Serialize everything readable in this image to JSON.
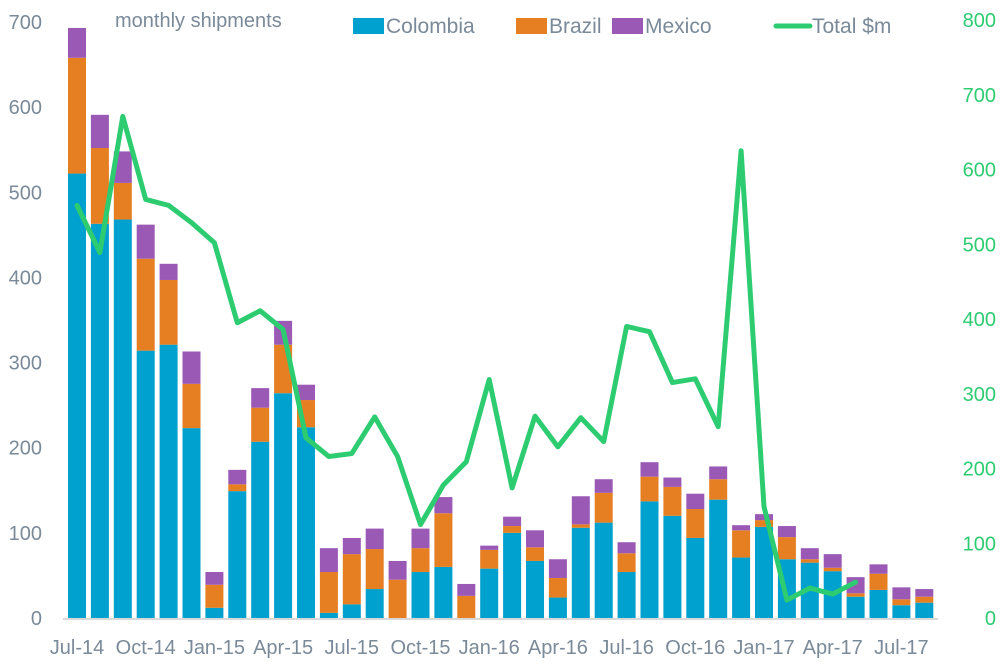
{
  "chart_data": {
    "type": "bar",
    "subtype": "stacked bar with line on secondary axis",
    "title": "monthly shipments",
    "xlabel": "",
    "ylabel": "",
    "y2label": "",
    "ylim": [
      0,
      700
    ],
    "y2lim": [
      0,
      800
    ],
    "yticks": [
      0,
      100,
      200,
      300,
      400,
      500,
      600,
      700
    ],
    "y2ticks": [
      0,
      100,
      200,
      300,
      400,
      500,
      600,
      700,
      800
    ],
    "grid": false,
    "legend_position": "top",
    "categories": [
      "Jul-14",
      "Aug-14",
      "Sep-14",
      "Oct-14",
      "Nov-14",
      "Dec-14",
      "Jan-15",
      "Feb-15",
      "Mar-15",
      "Apr-15",
      "May-15",
      "Jun-15",
      "Jul-15",
      "Aug-15",
      "Sep-15",
      "Oct-15",
      "Nov-15",
      "Dec-15",
      "Jan-16",
      "Feb-16",
      "Mar-16",
      "Apr-16",
      "May-16",
      "Jun-16",
      "Jul-16",
      "Aug-16",
      "Sep-16",
      "Oct-16",
      "Nov-16",
      "Dec-16",
      "Jan-17",
      "Feb-17",
      "Mar-17",
      "Apr-17",
      "May-17",
      "Jun-17",
      "Jul-17",
      "Aug-17"
    ],
    "xtick_labels": [
      "Jul-14",
      "Oct-14",
      "Jan-15",
      "Apr-15",
      "Jul-15",
      "Oct-15",
      "Jan-16",
      "Apr-16",
      "Jul-16",
      "Oct-16",
      "Jan-17",
      "Apr-17",
      "Jul-17"
    ],
    "series": [
      {
        "name": "Colombia",
        "type": "bar",
        "axis": "left",
        "color": "#00a0cf",
        "values": [
          522,
          463,
          468,
          314,
          321,
          223,
          12,
          149,
          207,
          264,
          224,
          6,
          16,
          34,
          0,
          54,
          60,
          0,
          58,
          100,
          67,
          24,
          106,
          112,
          54,
          137,
          120,
          94,
          139,
          71,
          107,
          69,
          65,
          55,
          25,
          33,
          15,
          18
        ]
      },
      {
        "name": "Brazil",
        "type": "bar",
        "axis": "left",
        "color": "#e67e22",
        "values": [
          136,
          89,
          43,
          108,
          76,
          52,
          27,
          8,
          40,
          57,
          32,
          48,
          59,
          47,
          45,
          28,
          63,
          26,
          22,
          8,
          16,
          23,
          4,
          35,
          22,
          29,
          34,
          34,
          24,
          32,
          8,
          26,
          4,
          4,
          4,
          19,
          7,
          7
        ]
      },
      {
        "name": "Mexico",
        "type": "bar",
        "axis": "left",
        "color": "#9b59b6",
        "values": [
          35,
          39,
          37,
          40,
          19,
          38,
          15,
          17,
          23,
          28,
          18,
          28,
          19,
          24,
          22,
          23,
          19,
          14,
          5,
          11,
          20,
          22,
          33,
          16,
          13,
          17,
          11,
          18,
          15,
          6,
          7,
          13,
          13,
          16,
          19,
          11,
          14,
          9
        ]
      },
      {
        "name": "Total $m",
        "type": "line",
        "axis": "right",
        "color": "#2ecc71",
        "values": [
          552,
          489,
          671,
          560,
          552,
          529,
          502,
          395,
          411,
          386,
          241,
          216,
          220,
          269,
          216,
          125,
          178,
          209,
          319,
          174,
          270,
          229,
          268,
          236,
          390,
          383,
          315,
          320,
          256,
          625,
          149,
          24,
          40,
          32,
          48,
          null,
          null,
          null
        ]
      }
    ]
  }
}
